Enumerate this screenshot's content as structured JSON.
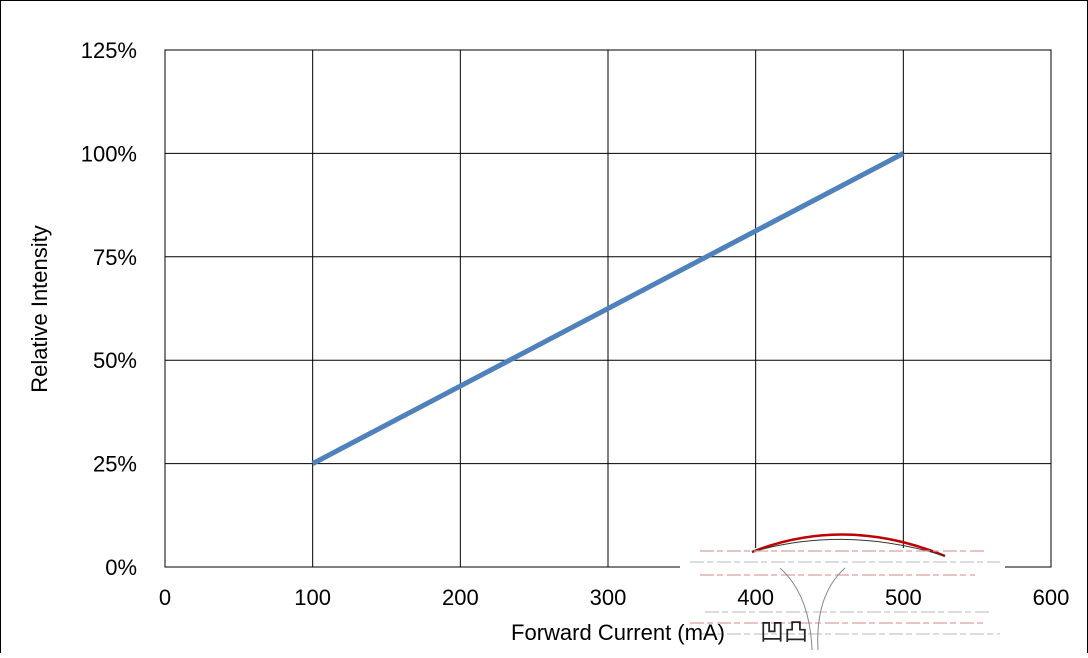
{
  "chart_data": {
    "type": "line",
    "title": "",
    "xlabel": "Forward Current (mA)",
    "ylabel": "Relative Intensity",
    "xlim": [
      0,
      600
    ],
    "ylim": [
      0,
      125
    ],
    "x_ticks": [
      0,
      100,
      200,
      300,
      400,
      500,
      600
    ],
    "y_ticks": [
      0,
      25,
      50,
      75,
      100,
      125
    ],
    "x_tick_labels": [
      "0",
      "100",
      "200",
      "300",
      "400",
      "500",
      "600"
    ],
    "y_tick_labels": [
      "0%",
      "25%",
      "50%",
      "75%",
      "100%",
      "125%"
    ],
    "grid": true,
    "legend": "none",
    "series": [
      {
        "color": "#4F81BD",
        "x": [
          100,
          500
        ],
        "y": [
          25,
          100
        ]
      }
    ],
    "watermark": {
      "text": "凹凸",
      "color": "#C00000"
    }
  }
}
